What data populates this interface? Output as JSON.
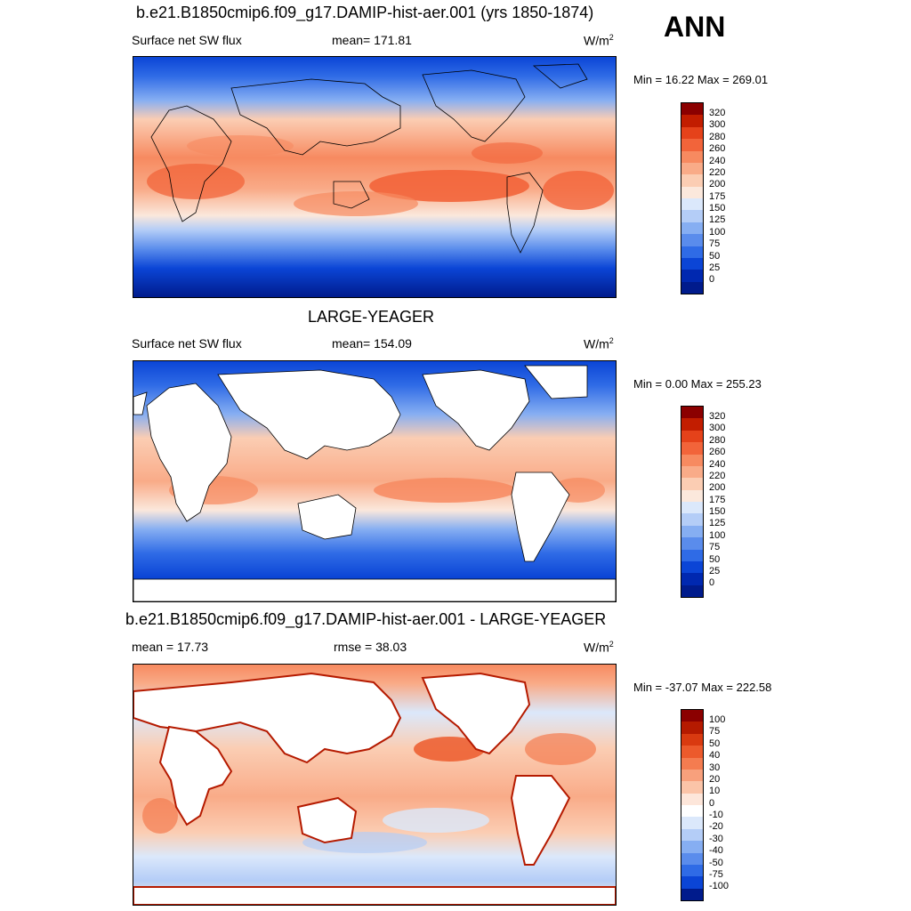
{
  "season": "ANN",
  "panels": [
    {
      "title": "b.e21.B1850cmip6.f09_g17.DAMIP-hist-aer.001 (yrs 1850-1874)",
      "left_label": "Surface net SW flux",
      "center_label": "mean= 171.81",
      "units": "W/m",
      "units_sup": "2",
      "minmax": "Min =  16.22 Max = 269.01",
      "colorbar_levels": [
        "320",
        "300",
        "280",
        "260",
        "240",
        "220",
        "200",
        "175",
        "150",
        "125",
        "100",
        "75",
        "50",
        "25",
        "0"
      ],
      "colorbar_colors": [
        "#8b0000",
        "#c21d00",
        "#e5421a",
        "#f2643a",
        "#f78a60",
        "#f9ab88",
        "#fbcdb3",
        "#fbe8dc",
        "#dbe8fb",
        "#b4cdf7",
        "#86aef2",
        "#5a8cec",
        "#2f6be6",
        "#0b45d6",
        "#0028b0",
        "#001b8c"
      ]
    },
    {
      "title": "LARGE-YEAGER",
      "left_label": "Surface net SW flux",
      "center_label": "mean= 154.09",
      "units": "W/m",
      "units_sup": "2",
      "minmax": "Min =   0.00 Max = 255.23",
      "colorbar_levels": [
        "320",
        "300",
        "280",
        "260",
        "240",
        "220",
        "200",
        "175",
        "150",
        "125",
        "100",
        "75",
        "50",
        "25",
        "0"
      ],
      "colorbar_colors": [
        "#8b0000",
        "#c21d00",
        "#e5421a",
        "#f2643a",
        "#f78a60",
        "#f9ab88",
        "#fbcdb3",
        "#fbe8dc",
        "#dbe8fb",
        "#b4cdf7",
        "#86aef2",
        "#5a8cec",
        "#2f6be6",
        "#0b45d6",
        "#0028b0",
        "#001b8c"
      ]
    },
    {
      "title": "b.e21.B1850cmip6.f09_g17.DAMIP-hist-aer.001 - LARGE-YEAGER",
      "left_label": "mean =  17.73",
      "center_label": "rmse =  38.03",
      "units": "W/m",
      "units_sup": "2",
      "minmax": "Min = -37.07 Max = 222.58",
      "colorbar_levels": [
        "100",
        "75",
        "50",
        "40",
        "30",
        "20",
        "10",
        "0",
        "-10",
        "-20",
        "-30",
        "-40",
        "-50",
        "-75",
        "-100"
      ],
      "colorbar_colors": [
        "#8b0000",
        "#b51a00",
        "#d93a10",
        "#ec5a2c",
        "#f47c50",
        "#f8a07c",
        "#fbc4a8",
        "#fde6da",
        "#ffffff",
        "#dbe8fb",
        "#b4cdf7",
        "#86aef2",
        "#5a8cec",
        "#2f6be6",
        "#0b45d6",
        "#001b8c"
      ]
    }
  ]
}
